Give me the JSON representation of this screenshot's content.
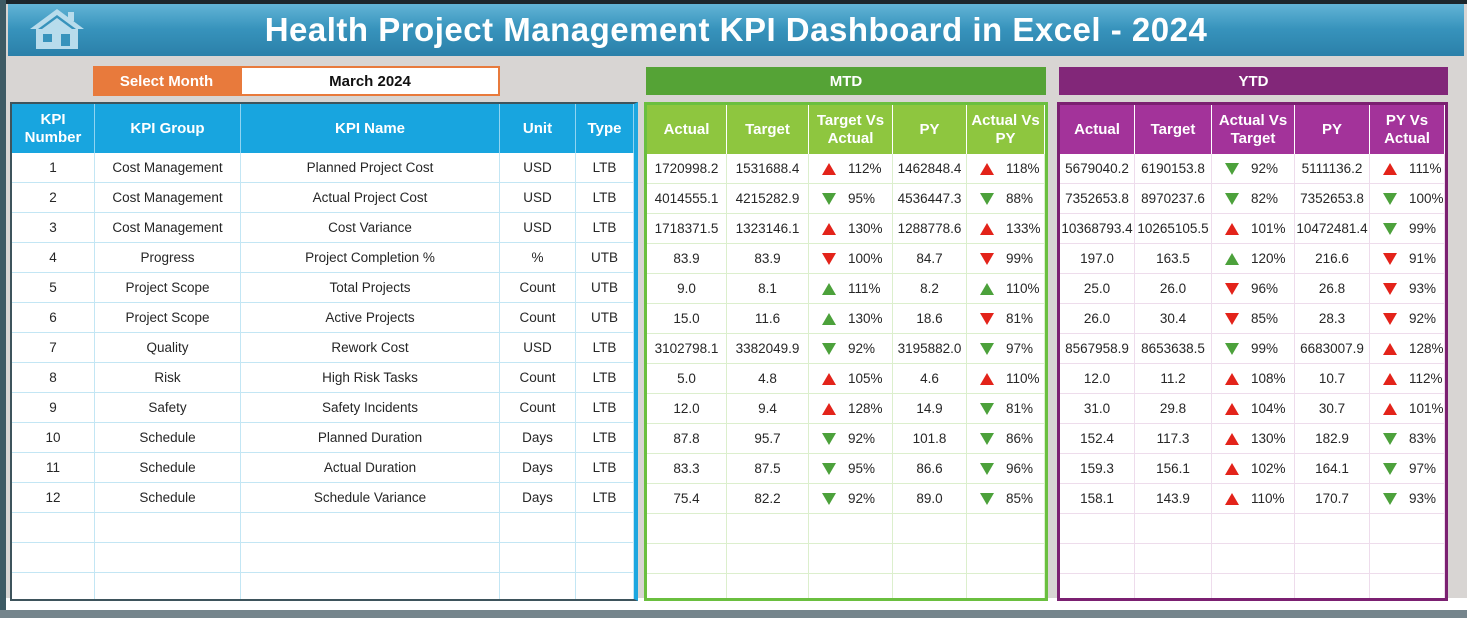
{
  "header": {
    "title": "Health Project Management KPI Dashboard in Excel - 2024"
  },
  "month": {
    "label": "Select Month",
    "value": "March 2024"
  },
  "mtd": {
    "label": "MTD",
    "headers": [
      "Actual",
      "Target",
      "Target Vs Actual",
      "PY",
      "Actual Vs PY"
    ]
  },
  "ytd": {
    "label": "YTD",
    "headers": [
      "Actual",
      "Target",
      "Actual Vs Target",
      "PY",
      "PY Vs Actual"
    ]
  },
  "kpi": {
    "headers": [
      "KPI Number",
      "KPI Group",
      "KPI Name",
      "Unit",
      "Type"
    ]
  },
  "empty_rows": 3,
  "colors": {
    "title_bar_blue": "#3793bc",
    "accent_blue": "#18a5df",
    "orange": "#e87a3c",
    "mtd_band_green": "#55a336",
    "mtd_header_green": "#8ec63f",
    "ytd_band_purple": "#822779",
    "ytd_header_magenta": "#a3339a",
    "arrow_red": "#e3231a",
    "arrow_green": "#4ca13b"
  },
  "rows": [
    {
      "n": "1",
      "group": "Cost Management",
      "name": "Planned Project Cost",
      "unit": "USD",
      "type": "LTB",
      "mtd": {
        "actual": "1720998.2",
        "target": "1531688.4",
        "v1": {
          "dir": "up",
          "color": "red",
          "val": "112%"
        },
        "py": "1462848.4",
        "v2": {
          "dir": "up",
          "color": "red",
          "val": "118%"
        }
      },
      "ytd": {
        "actual": "5679040.2",
        "target": "6190153.8",
        "v1": {
          "dir": "down",
          "color": "green",
          "val": "92%"
        },
        "py": "5111136.2",
        "v2": {
          "dir": "up",
          "color": "red",
          "val": "111%"
        }
      }
    },
    {
      "n": "2",
      "group": "Cost Management",
      "name": "Actual Project Cost",
      "unit": "USD",
      "type": "LTB",
      "mtd": {
        "actual": "4014555.1",
        "target": "4215282.9",
        "v1": {
          "dir": "down",
          "color": "green",
          "val": "95%"
        },
        "py": "4536447.3",
        "v2": {
          "dir": "down",
          "color": "green",
          "val": "88%"
        }
      },
      "ytd": {
        "actual": "7352653.8",
        "target": "8970237.6",
        "v1": {
          "dir": "down",
          "color": "green",
          "val": "82%"
        },
        "py": "7352653.8",
        "v2": {
          "dir": "down",
          "color": "green",
          "val": "100%"
        }
      }
    },
    {
      "n": "3",
      "group": "Cost Management",
      "name": "Cost Variance",
      "unit": "USD",
      "type": "LTB",
      "mtd": {
        "actual": "1718371.5",
        "target": "1323146.1",
        "v1": {
          "dir": "up",
          "color": "red",
          "val": "130%"
        },
        "py": "1288778.6",
        "v2": {
          "dir": "up",
          "color": "red",
          "val": "133%"
        }
      },
      "ytd": {
        "actual": "10368793.4",
        "target": "10265105.5",
        "v1": {
          "dir": "up",
          "color": "red",
          "val": "101%"
        },
        "py": "10472481.4",
        "v2": {
          "dir": "down",
          "color": "green",
          "val": "99%"
        }
      }
    },
    {
      "n": "4",
      "group": "Progress",
      "name": "Project Completion %",
      "unit": "%",
      "type": "UTB",
      "mtd": {
        "actual": "83.9",
        "target": "83.9",
        "v1": {
          "dir": "down",
          "color": "red",
          "val": "100%"
        },
        "py": "84.7",
        "v2": {
          "dir": "down",
          "color": "red",
          "val": "99%"
        }
      },
      "ytd": {
        "actual": "197.0",
        "target": "163.5",
        "v1": {
          "dir": "up",
          "color": "green",
          "val": "120%"
        },
        "py": "216.6",
        "v2": {
          "dir": "down",
          "color": "red",
          "val": "91%"
        }
      }
    },
    {
      "n": "5",
      "group": "Project Scope",
      "name": "Total Projects",
      "unit": "Count",
      "type": "UTB",
      "mtd": {
        "actual": "9.0",
        "target": "8.1",
        "v1": {
          "dir": "up",
          "color": "green",
          "val": "111%"
        },
        "py": "8.2",
        "v2": {
          "dir": "up",
          "color": "green",
          "val": "110%"
        }
      },
      "ytd": {
        "actual": "25.0",
        "target": "26.0",
        "v1": {
          "dir": "down",
          "color": "red",
          "val": "96%"
        },
        "py": "26.8",
        "v2": {
          "dir": "down",
          "color": "red",
          "val": "93%"
        }
      }
    },
    {
      "n": "6",
      "group": "Project Scope",
      "name": "Active Projects",
      "unit": "Count",
      "type": "UTB",
      "mtd": {
        "actual": "15.0",
        "target": "11.6",
        "v1": {
          "dir": "up",
          "color": "green",
          "val": "130%"
        },
        "py": "18.6",
        "v2": {
          "dir": "down",
          "color": "red",
          "val": "81%"
        }
      },
      "ytd": {
        "actual": "26.0",
        "target": "30.4",
        "v1": {
          "dir": "down",
          "color": "red",
          "val": "85%"
        },
        "py": "28.3",
        "v2": {
          "dir": "down",
          "color": "red",
          "val": "92%"
        }
      }
    },
    {
      "n": "7",
      "group": "Quality",
      "name": "Rework Cost",
      "unit": "USD",
      "type": "LTB",
      "mtd": {
        "actual": "3102798.1",
        "target": "3382049.9",
        "v1": {
          "dir": "down",
          "color": "green",
          "val": "92%"
        },
        "py": "3195882.0",
        "v2": {
          "dir": "down",
          "color": "green",
          "val": "97%"
        }
      },
      "ytd": {
        "actual": "8567958.9",
        "target": "8653638.5",
        "v1": {
          "dir": "down",
          "color": "green",
          "val": "99%"
        },
        "py": "6683007.9",
        "v2": {
          "dir": "up",
          "color": "red",
          "val": "128%"
        }
      }
    },
    {
      "n": "8",
      "group": "Risk",
      "name": "High Risk Tasks",
      "unit": "Count",
      "type": "LTB",
      "mtd": {
        "actual": "5.0",
        "target": "4.8",
        "v1": {
          "dir": "up",
          "color": "red",
          "val": "105%"
        },
        "py": "4.6",
        "v2": {
          "dir": "up",
          "color": "red",
          "val": "110%"
        }
      },
      "ytd": {
        "actual": "12.0",
        "target": "11.2",
        "v1": {
          "dir": "up",
          "color": "red",
          "val": "108%"
        },
        "py": "10.7",
        "v2": {
          "dir": "up",
          "color": "red",
          "val": "112%"
        }
      }
    },
    {
      "n": "9",
      "group": "Safety",
      "name": "Safety Incidents",
      "unit": "Count",
      "type": "LTB",
      "mtd": {
        "actual": "12.0",
        "target": "9.4",
        "v1": {
          "dir": "up",
          "color": "red",
          "val": "128%"
        },
        "py": "14.9",
        "v2": {
          "dir": "down",
          "color": "green",
          "val": "81%"
        }
      },
      "ytd": {
        "actual": "31.0",
        "target": "29.8",
        "v1": {
          "dir": "up",
          "color": "red",
          "val": "104%"
        },
        "py": "30.7",
        "v2": {
          "dir": "up",
          "color": "red",
          "val": "101%"
        }
      }
    },
    {
      "n": "10",
      "group": "Schedule",
      "name": "Planned Duration",
      "unit": "Days",
      "type": "LTB",
      "mtd": {
        "actual": "87.8",
        "target": "95.7",
        "v1": {
          "dir": "down",
          "color": "green",
          "val": "92%"
        },
        "py": "101.8",
        "v2": {
          "dir": "down",
          "color": "green",
          "val": "86%"
        }
      },
      "ytd": {
        "actual": "152.4",
        "target": "117.3",
        "v1": {
          "dir": "up",
          "color": "red",
          "val": "130%"
        },
        "py": "182.9",
        "v2": {
          "dir": "down",
          "color": "green",
          "val": "83%"
        }
      }
    },
    {
      "n": "11",
      "group": "Schedule",
      "name": "Actual Duration",
      "unit": "Days",
      "type": "LTB",
      "mtd": {
        "actual": "83.3",
        "target": "87.5",
        "v1": {
          "dir": "down",
          "color": "green",
          "val": "95%"
        },
        "py": "86.6",
        "v2": {
          "dir": "down",
          "color": "green",
          "val": "96%"
        }
      },
      "ytd": {
        "actual": "159.3",
        "target": "156.1",
        "v1": {
          "dir": "up",
          "color": "red",
          "val": "102%"
        },
        "py": "164.1",
        "v2": {
          "dir": "down",
          "color": "green",
          "val": "97%"
        }
      }
    },
    {
      "n": "12",
      "group": "Schedule",
      "name": "Schedule Variance",
      "unit": "Days",
      "type": "LTB",
      "mtd": {
        "actual": "75.4",
        "target": "82.2",
        "v1": {
          "dir": "down",
          "color": "green",
          "val": "92%"
        },
        "py": "89.0",
        "v2": {
          "dir": "down",
          "color": "green",
          "val": "85%"
        }
      },
      "ytd": {
        "actual": "158.1",
        "target": "143.9",
        "v1": {
          "dir": "up",
          "color": "red",
          "val": "110%"
        },
        "py": "170.7",
        "v2": {
          "dir": "down",
          "color": "green",
          "val": "93%"
        }
      }
    }
  ]
}
